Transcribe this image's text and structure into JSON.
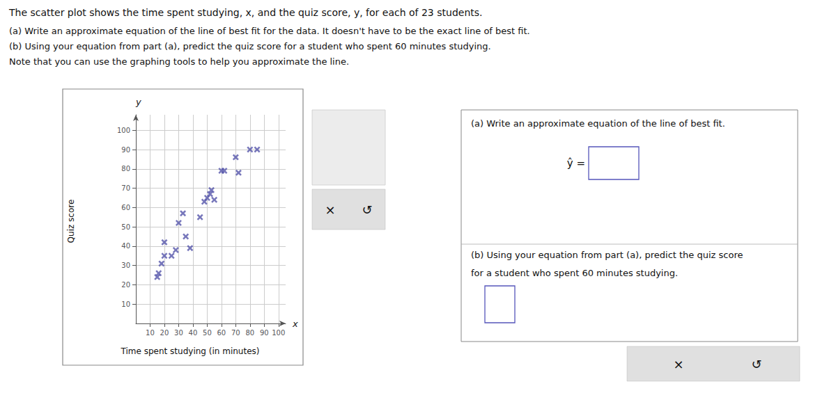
{
  "chart_data": {
    "type": "scatter",
    "title": "The scatter plot shows the time spent studying, x, and the quiz score, y, for each of 23 students.",
    "subtitle": "(a) Write an approximate equation of the line of best fit for the data. It doesn't have to be the exact line of best fit.\n(b) Using your equation from part (a), predict the quiz score for a student who spent 60 minutes studying.\nNote that you can use the graphing tools to help you approximate the line.",
    "xlabel": "Time spent studying (in minutes)",
    "ylabel": "Quiz score",
    "x": [
      15,
      16,
      18,
      20,
      20,
      25,
      28,
      30,
      33,
      35,
      38,
      45,
      48,
      50,
      52,
      53,
      55,
      60,
      62,
      70,
      72,
      80,
      85
    ],
    "values": [
      24,
      26,
      31,
      35,
      42,
      35,
      38,
      52,
      57,
      45,
      39,
      55,
      63,
      65,
      67,
      69,
      64,
      79,
      79,
      86,
      78,
      90,
      90
    ],
    "color": "#5555aa",
    "marker": "x",
    "xlim": [
      0,
      105
    ],
    "ylim": [
      0,
      108
    ],
    "xticks": [
      10,
      20,
      30,
      40,
      50,
      60,
      70,
      80,
      90,
      100
    ],
    "yticks": [
      10,
      20,
      30,
      40,
      50,
      60,
      70,
      80,
      90,
      100
    ],
    "grid": true,
    "annotations": [
      "y",
      "x",
      "(a) Write an approximate equation of the line of best fit.",
      "ŷ =",
      "(b) Using your equation from part (a), predict the quiz score",
      "for a student who spent 60 minutes studying.",
      "×",
      "↺",
      "×",
      "↺"
    ]
  }
}
